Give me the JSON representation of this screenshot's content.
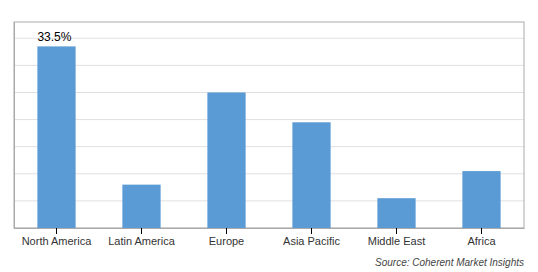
{
  "chart_data": {
    "type": "bar",
    "categories": [
      "North America",
      "Latin America",
      "Europe",
      "Asia Pacific",
      "Middle East",
      "Africa"
    ],
    "values": [
      33.5,
      8.0,
      25.0,
      19.5,
      5.5,
      10.5
    ],
    "color": "#5b9bd5",
    "ylim": [
      0,
      38
    ],
    "yticks": [
      0,
      5,
      10,
      15,
      20,
      25,
      30,
      35
    ],
    "grid": true,
    "tick_labels": "x",
    "annotations": [
      {
        "text": "33.5%",
        "x": "North America",
        "y": 33.5
      }
    ],
    "source": "Source: Coherent Market Insights"
  }
}
